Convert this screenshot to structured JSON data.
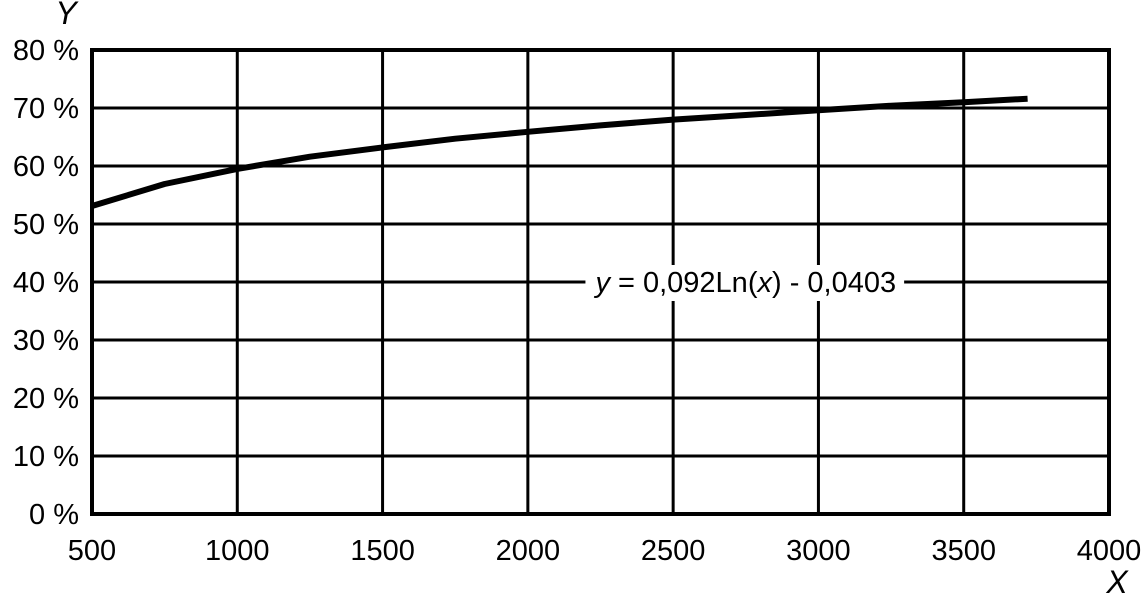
{
  "chart_data": {
    "type": "line",
    "xlabel": "X",
    "ylabel": "Y",
    "xlim": [
      500,
      4000
    ],
    "ylim": [
      0,
      80
    ],
    "x_ticks": [
      500,
      1000,
      1500,
      2000,
      2500,
      3000,
      3500,
      4000
    ],
    "x_tick_labels": [
      "500",
      "1000",
      "1500",
      "2000",
      "2500",
      "3000",
      "3500",
      "4000"
    ],
    "y_ticks": [
      0,
      10,
      20,
      30,
      40,
      50,
      60,
      70,
      80
    ],
    "y_tick_labels": [
      "0 %",
      "10 %",
      "20 %",
      "30 %",
      "40 %",
      "50 %",
      "60 %",
      "70 %",
      "80 %"
    ],
    "grid": true,
    "series": [
      {
        "x": [
          500,
          750,
          1000,
          1250,
          1500,
          1750,
          2000,
          2250,
          2500,
          2750,
          3000,
          3250,
          3500,
          3720
        ],
        "y": [
          53.1,
          56.9,
          59.5,
          61.6,
          63.2,
          64.7,
          65.9,
          67.0,
          68.0,
          68.8,
          69.6,
          70.4,
          71.0,
          71.6
        ],
        "color": "#000000"
      }
    ],
    "annotation": {
      "parts": [
        {
          "text": "y",
          "italic": true
        },
        {
          "text": " = 0,092Ln(",
          "italic": false
        },
        {
          "text": "x",
          "italic": true
        },
        {
          "text": ") - 0,0403",
          "italic": false
        }
      ],
      "x": 2750,
      "y": 40
    }
  }
}
